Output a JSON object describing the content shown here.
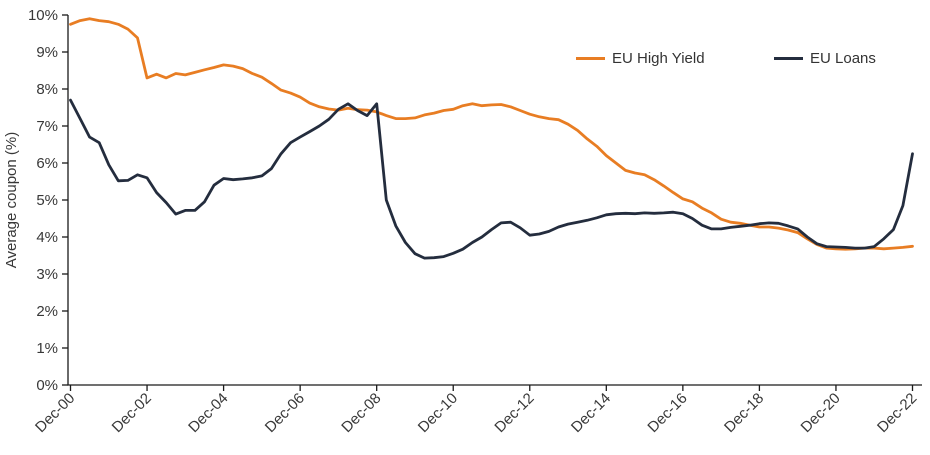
{
  "chart_data": {
    "type": "line",
    "title": "",
    "xlabel": "",
    "ylabel": "Average coupon (%)",
    "ylim": [
      0,
      10
    ],
    "grid": false,
    "legend_position": "top-right-inside",
    "y_tick_values": [
      0,
      1,
      2,
      3,
      4,
      5,
      6,
      7,
      8,
      9,
      10
    ],
    "y_tick_labels": [
      "0%",
      "1%",
      "2%",
      "3%",
      "4%",
      "5%",
      "6%",
      "7%",
      "8%",
      "9%",
      "10%"
    ],
    "x_tick_months": [
      0,
      24,
      48,
      72,
      96,
      120,
      144,
      168,
      192,
      216,
      240,
      264
    ],
    "x_tick_labels": [
      "Dec-00",
      "Dec-02",
      "Dec-04",
      "Dec-06",
      "Dec-08",
      "Dec-10",
      "Dec-12",
      "Dec-14",
      "Dec-16",
      "Dec-18",
      "Dec-20",
      "Dec-22"
    ],
    "x_months": [
      0,
      3,
      6,
      9,
      12,
      15,
      18,
      21,
      24,
      27,
      30,
      33,
      36,
      39,
      42,
      45,
      48,
      51,
      54,
      57,
      60,
      63,
      66,
      69,
      72,
      75,
      78,
      81,
      84,
      87,
      90,
      93,
      96,
      99,
      102,
      105,
      108,
      111,
      114,
      117,
      120,
      123,
      126,
      129,
      132,
      135,
      138,
      141,
      144,
      147,
      150,
      153,
      156,
      159,
      162,
      165,
      168,
      171,
      174,
      177,
      180,
      183,
      186,
      189,
      192,
      195,
      198,
      201,
      204,
      207,
      210,
      213,
      216,
      219,
      222,
      225,
      228,
      231,
      234,
      237,
      240,
      243,
      246,
      249,
      252,
      255,
      258,
      261,
      264
    ],
    "series": [
      {
        "name": "EU High Yield",
        "color": "#E87D23",
        "values": [
          9.75,
          9.85,
          9.9,
          9.85,
          9.82,
          9.75,
          9.62,
          9.38,
          8.3,
          8.4,
          8.3,
          8.42,
          8.38,
          8.45,
          8.52,
          8.58,
          8.65,
          8.62,
          8.55,
          8.42,
          8.32,
          8.15,
          7.97,
          7.89,
          7.78,
          7.62,
          7.52,
          7.46,
          7.43,
          7.48,
          7.44,
          7.43,
          7.38,
          7.28,
          7.2,
          7.2,
          7.22,
          7.3,
          7.35,
          7.42,
          7.45,
          7.55,
          7.6,
          7.55,
          7.57,
          7.58,
          7.52,
          7.42,
          7.32,
          7.25,
          7.2,
          7.17,
          7.05,
          6.88,
          6.65,
          6.45,
          6.2,
          6.0,
          5.8,
          5.73,
          5.68,
          5.55,
          5.38,
          5.2,
          5.03,
          4.95,
          4.78,
          4.65,
          4.48,
          4.4,
          4.37,
          4.32,
          4.27,
          4.27,
          4.24,
          4.19,
          4.12,
          3.95,
          3.8,
          3.7,
          3.68,
          3.67,
          3.68,
          3.7,
          3.7,
          3.68,
          3.7,
          3.72,
          3.75
        ]
      },
      {
        "name": "EU Loans",
        "color": "#242D3E",
        "values": [
          7.7,
          7.2,
          6.7,
          6.55,
          5.95,
          5.52,
          5.53,
          5.68,
          5.6,
          5.2,
          4.93,
          4.62,
          4.72,
          4.72,
          4.95,
          5.4,
          5.58,
          5.55,
          5.57,
          5.6,
          5.65,
          5.85,
          6.25,
          6.55,
          6.7,
          6.85,
          7.0,
          7.18,
          7.45,
          7.6,
          7.42,
          7.28,
          7.6,
          5.0,
          4.3,
          3.85,
          3.55,
          3.43,
          3.44,
          3.47,
          3.56,
          3.67,
          3.85,
          4.0,
          4.2,
          4.38,
          4.4,
          4.25,
          4.05,
          4.08,
          4.15,
          4.27,
          4.35,
          4.4,
          4.45,
          4.52,
          4.6,
          4.63,
          4.64,
          4.63,
          4.65,
          4.64,
          4.65,
          4.67,
          4.63,
          4.5,
          4.32,
          4.22,
          4.22,
          4.26,
          4.29,
          4.32,
          4.36,
          4.38,
          4.37,
          4.3,
          4.22,
          4.0,
          3.82,
          3.74,
          3.73,
          3.72,
          3.7,
          3.7,
          3.74,
          3.95,
          4.2,
          4.85,
          6.25
        ]
      }
    ]
  },
  "colors": {
    "axis": "#1a1a1a",
    "tick_text": "#383838",
    "background": "#ffffff"
  }
}
